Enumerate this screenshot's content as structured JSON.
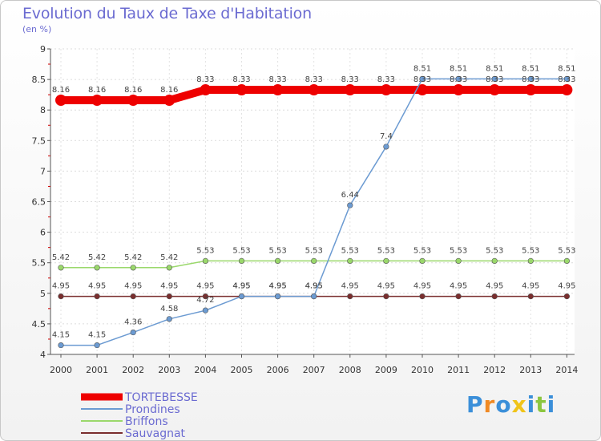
{
  "header": {
    "title": "Evolution du Taux de Taxe d'Habitation",
    "subtitle": "(en %)"
  },
  "chart_data": {
    "type": "line",
    "title": "Evolution du Taux de Taxe d'Habitation",
    "subtitle": "(en %)",
    "xlabel": "",
    "ylabel": "(en %)",
    "ylim": [
      4,
      9
    ],
    "yticks": [
      "4",
      "4.5",
      "5",
      "5.5",
      "6",
      "6.5",
      "7",
      "7.5",
      "8",
      "8.5",
      "9"
    ],
    "categories": [
      "2000",
      "2001",
      "2002",
      "2003",
      "2004",
      "2005",
      "2006",
      "2007",
      "2008",
      "2009",
      "2010",
      "2011",
      "2012",
      "2013",
      "2014"
    ],
    "series": [
      {
        "name": "TORTEBESSE",
        "color": "#ee0000",
        "values": [
          8.16,
          8.16,
          8.16,
          8.16,
          8.33,
          8.33,
          8.33,
          8.33,
          8.33,
          8.33,
          8.33,
          8.33,
          8.33,
          8.33,
          8.33
        ]
      },
      {
        "name": "Prondines",
        "color": "#6c9bd2",
        "values": [
          4.15,
          4.15,
          4.36,
          4.58,
          4.72,
          4.95,
          4.95,
          4.95,
          6.44,
          7.4,
          8.51,
          8.51,
          8.51,
          8.51,
          8.51
        ]
      },
      {
        "name": "Briffons",
        "color": "#9ad86b",
        "values": [
          5.42,
          5.42,
          5.42,
          5.42,
          5.53,
          5.53,
          5.53,
          5.53,
          5.53,
          5.53,
          5.53,
          5.53,
          5.53,
          5.53,
          5.53
        ]
      },
      {
        "name": "Sauvagnat",
        "color": "#7a2e2e",
        "values": [
          4.95,
          4.95,
          4.95,
          4.95,
          4.95,
          4.95,
          4.95,
          4.95,
          4.95,
          4.95,
          4.95,
          4.95,
          4.95,
          4.95,
          4.95
        ]
      }
    ],
    "legend_position": "bottom-left"
  },
  "branding": {
    "logo_letters": [
      "P",
      "r",
      "o",
      "x",
      "i",
      "t",
      "i"
    ],
    "logo_colors": [
      "#3b8fd9",
      "#f08a24",
      "#3b8fd9",
      "#f0c419",
      "#3b8fd9",
      "#8cc63f",
      "#3b8fd9"
    ]
  }
}
